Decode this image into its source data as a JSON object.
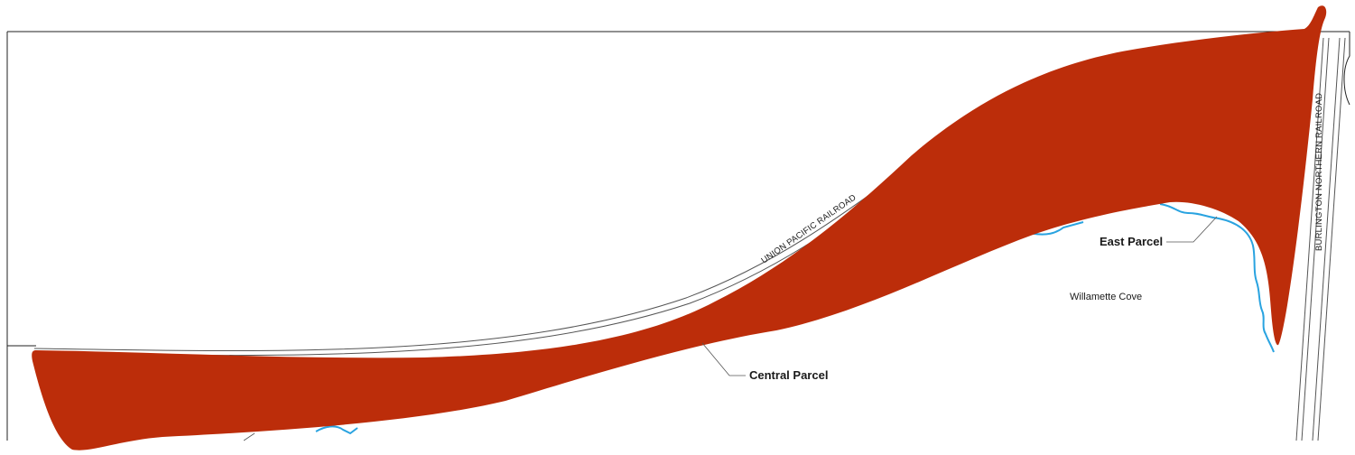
{
  "map": {
    "labels": {
      "union_pacific": "UNION PACIFIC RAILROAD",
      "burlington_northern": "BURLINGTON NORTHERN RAILROAD",
      "east_parcel": "East Parcel",
      "central_parcel": "Central Parcel",
      "willamette_cove": "Willamette Cove"
    },
    "colors": {
      "parcel_fill": "#bc2d0a",
      "shoreline": "#29a3e0",
      "railroad_lines": "#555555",
      "frame": "#222222",
      "background": "#ffffff"
    }
  }
}
